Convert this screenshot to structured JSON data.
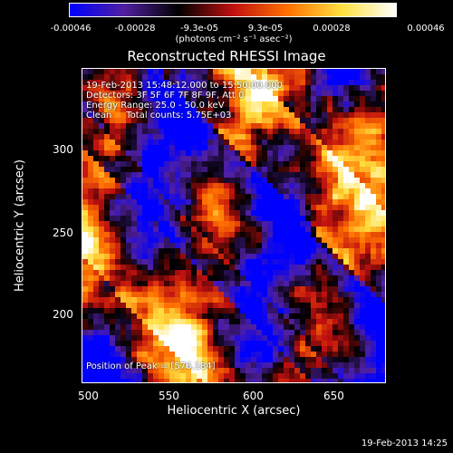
{
  "colorbar": {
    "tick_labels": [
      "-0.00046",
      "-0.00028",
      "-9.3e-05",
      "9.3e-05",
      "0.00028",
      "0.00046"
    ],
    "units": "(photons cm⁻² s⁻¹ asec⁻²)"
  },
  "chart_data": {
    "type": "heatmap",
    "title": "Reconstructed RHESSI Image",
    "xlabel": "Heliocentric X (arcsec)",
    "ylabel": "Heliocentric Y (arcsec)",
    "x_ticks": [
      "500",
      "550",
      "600",
      "650"
    ],
    "y_ticks": [
      "200",
      "250",
      "300"
    ],
    "xlim": [
      488,
      680
    ],
    "ylim": [
      152,
      350
    ],
    "value_range": [
      -0.00046,
      0.00046
    ],
    "annotations": {
      "line1": "19-Feb-2013 15:48:12.000 to 15:50:00.000",
      "line2": "Detectors: 3F 5F 6F 7F 8F 9F, Att 0",
      "line3": "Energy Range: 25.0 - 50.0 keV",
      "line4": "Clean     Total counts: 5.75E+03",
      "peak": "Position of Peak = [576,184]"
    },
    "colormap": [
      "#0000ff",
      "#5020a0",
      "#000000",
      "#c01010",
      "#ff7000",
      "#ffe040",
      "#ffffff"
    ]
  },
  "footer": {
    "timestamp": "19-Feb-2013 14:25"
  }
}
